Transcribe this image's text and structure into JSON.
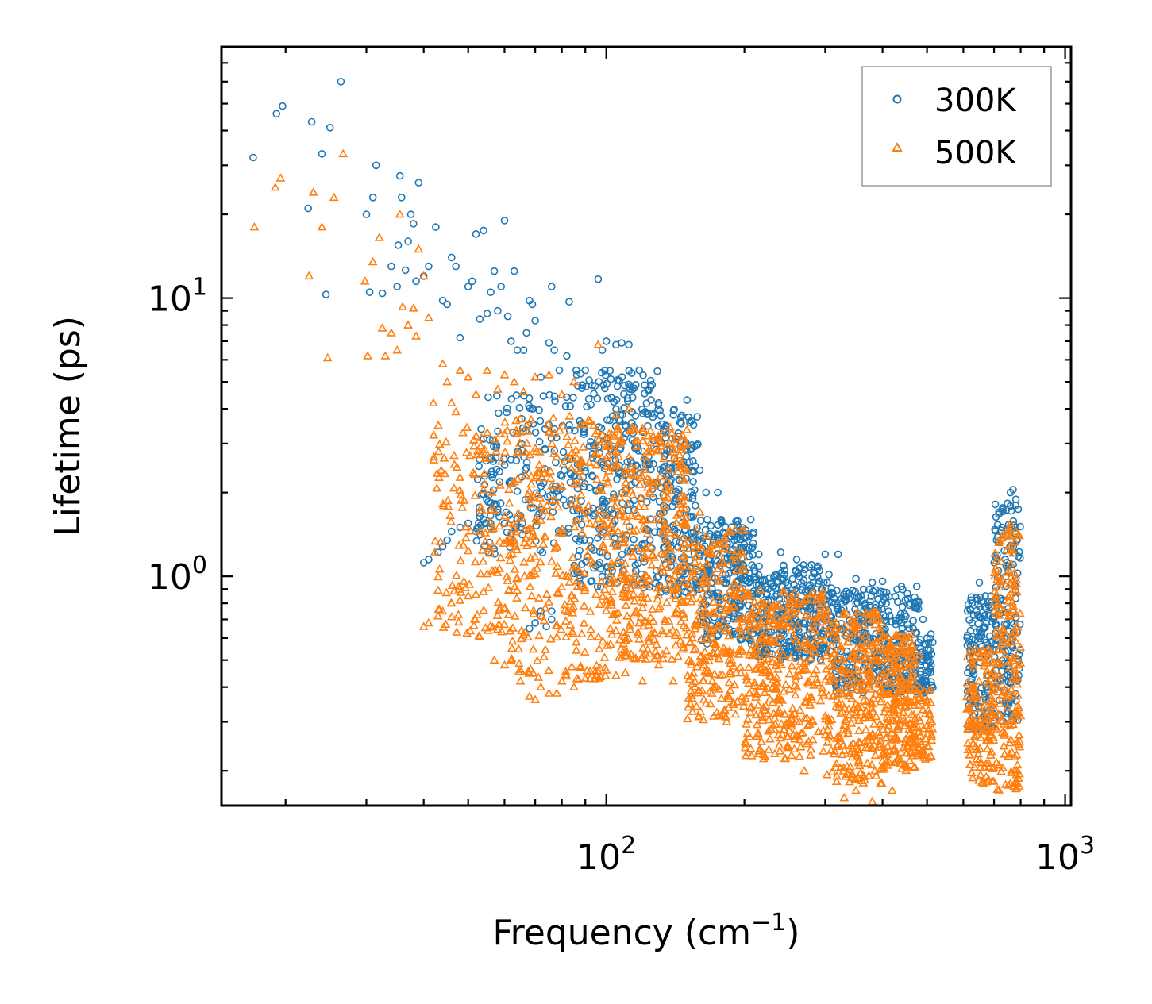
{
  "chart_data": {
    "type": "scatter",
    "title": "",
    "xlabel_main": "Frequency (cm",
    "xlabel_sup": "−1",
    "xlabel_close": ")",
    "ylabel": "Lifetime (ps)",
    "xscale": "log",
    "yscale": "log",
    "xlim": [
      14.5,
      1030
    ],
    "ylim": [
      0.15,
      80
    ],
    "x_major_ticks": [
      {
        "base": "10",
        "exp": "2",
        "value": 100
      },
      {
        "base": "10",
        "exp": "3",
        "value": 1000
      }
    ],
    "y_major_ticks": [
      {
        "base": "10",
        "exp": "0",
        "value": 1
      },
      {
        "base": "10",
        "exp": "1",
        "value": 10
      }
    ],
    "legend_position": "top-right",
    "series": [
      {
        "name": "300K",
        "marker": "circle-open",
        "color": "#1f77b4",
        "points": [
          [
            17,
            32
          ],
          [
            19.1,
            46
          ],
          [
            19.7,
            49
          ],
          [
            22.4,
            21
          ],
          [
            22.8,
            43
          ],
          [
            24,
            33
          ],
          [
            24.5,
            10.3
          ],
          [
            25,
            41
          ],
          [
            26.4,
            60
          ],
          [
            30,
            20
          ],
          [
            30.5,
            10.5
          ],
          [
            31,
            23
          ],
          [
            31.5,
            30
          ],
          [
            32.5,
            10.4
          ],
          [
            34,
            13
          ],
          [
            35,
            11
          ],
          [
            35.2,
            15.5
          ],
          [
            35.5,
            27.5
          ],
          [
            35.8,
            23
          ],
          [
            36.5,
            12.6
          ],
          [
            37,
            16
          ],
          [
            37.5,
            20
          ],
          [
            38,
            18.5
          ],
          [
            38.5,
            11.5
          ],
          [
            39,
            26
          ],
          [
            40,
            12
          ],
          [
            41,
            13
          ],
          [
            42.5,
            18
          ],
          [
            44,
            9.8
          ],
          [
            45,
            9.5
          ],
          [
            46,
            14
          ],
          [
            47,
            13
          ],
          [
            48,
            7.2
          ],
          [
            50,
            11
          ],
          [
            51,
            11.5
          ],
          [
            52,
            17
          ],
          [
            53,
            8.4
          ],
          [
            54,
            17.5
          ],
          [
            55,
            8.8
          ],
          [
            56,
            10.5
          ],
          [
            57,
            12.5
          ],
          [
            58,
            9
          ],
          [
            59,
            11
          ],
          [
            60,
            19
          ],
          [
            61,
            8.6
          ],
          [
            62,
            7
          ],
          [
            63,
            12.5
          ],
          [
            64,
            6.5
          ],
          [
            66,
            6.5
          ],
          [
            67,
            7.5
          ],
          [
            68,
            9.8
          ],
          [
            69,
            9.5
          ],
          [
            70,
            8.3
          ],
          [
            72,
            5.2
          ],
          [
            75,
            6.9
          ],
          [
            76,
            11
          ],
          [
            77,
            6.5
          ],
          [
            79,
            5.5
          ],
          [
            82,
            6.2
          ],
          [
            83,
            9.7
          ],
          [
            86,
            5.5
          ],
          [
            90,
            5.5
          ],
          [
            96,
            11.7
          ],
          [
            98,
            6.5
          ],
          [
            40,
            1.12
          ],
          [
            41,
            1.15
          ],
          [
            43,
            1.22
          ],
          [
            44,
            1.28
          ],
          [
            45,
            1.35
          ],
          [
            46,
            1.45
          ],
          [
            48,
            1.5
          ],
          [
            50,
            1.55
          ],
          [
            52,
            1.45
          ],
          [
            54,
            1.6
          ],
          [
            56,
            1.5
          ],
          [
            58,
            1.7
          ],
          [
            60,
            1.55
          ],
          [
            62,
            1.6
          ],
          [
            65,
            1.5
          ],
          [
            68,
            0.65
          ],
          [
            70,
            0.68
          ],
          [
            72,
            0.72
          ],
          [
            74,
            0.66
          ],
          [
            76,
            0.7
          ],
          [
            72,
            0.75
          ],
          [
            76,
            0.75
          ],
          [
            100,
            7
          ],
          [
            105,
            6.8
          ],
          [
            108,
            6.9
          ],
          [
            112,
            6.8
          ],
          [
            118,
            5.5
          ],
          [
            125,
            4.8
          ],
          [
            130,
            4.2
          ],
          [
            140,
            3.8
          ],
          [
            150,
            4.3
          ],
          [
            155,
            3.5
          ],
          [
            165,
            2.0
          ],
          [
            175,
            2.0
          ],
          [
            190,
            1.35
          ],
          [
            200,
            1.3
          ],
          [
            215,
            1.2
          ],
          [
            240,
            1.22
          ],
          [
            260,
            1.15
          ],
          [
            280,
            1.1
          ],
          [
            300,
            1.2
          ],
          [
            320,
            1.2
          ],
          [
            350,
            0.98
          ],
          [
            380,
            0.95
          ],
          [
            400,
            0.96
          ],
          [
            440,
            0.92
          ],
          [
            460,
            0.8
          ],
          [
            475,
            0.92
          ],
          [
            490,
            0.7
          ],
          [
            500,
            0.6
          ],
          [
            510,
            0.62
          ],
          [
            650,
            0.95
          ],
          [
            670,
            0.85
          ],
          [
            700,
            0.75
          ],
          [
            760,
            2.0
          ],
          [
            770,
            2.05
          ],
          [
            780,
            1.8
          ]
        ],
        "bands": [
          [
            52,
            85,
            1.2,
            4.5,
            180
          ],
          [
            85,
            130,
            0.9,
            5.5,
            320
          ],
          [
            130,
            160,
            0.85,
            4.0,
            200
          ],
          [
            160,
            210,
            0.55,
            1.6,
            240
          ],
          [
            210,
            310,
            0.5,
            1.1,
            320
          ],
          [
            310,
            480,
            0.38,
            0.9,
            340
          ],
          [
            480,
            515,
            0.38,
            0.6,
            60
          ],
          [
            610,
            700,
            0.28,
            0.85,
            140
          ],
          [
            700,
            800,
            0.3,
            1.9,
            160
          ]
        ]
      },
      {
        "name": "500K",
        "marker": "triangle-open",
        "color": "#ff7f0e",
        "points": [
          [
            17.1,
            18
          ],
          [
            19,
            25
          ],
          [
            19.5,
            27
          ],
          [
            22.5,
            12
          ],
          [
            23,
            24
          ],
          [
            24,
            18
          ],
          [
            24.7,
            6.1
          ],
          [
            25.5,
            23
          ],
          [
            26.7,
            33
          ],
          [
            29.8,
            11.5
          ],
          [
            30.2,
            6.2
          ],
          [
            31,
            13.5
          ],
          [
            32,
            16.5
          ],
          [
            32.5,
            7.8
          ],
          [
            33,
            6.2
          ],
          [
            34,
            7.5
          ],
          [
            35,
            6.5
          ],
          [
            35.5,
            20
          ],
          [
            36,
            9.3
          ],
          [
            37,
            8
          ],
          [
            38,
            9.2
          ],
          [
            38.5,
            7.3
          ],
          [
            39,
            15
          ],
          [
            40,
            12
          ],
          [
            41,
            8.5
          ],
          [
            42,
            4.2
          ],
          [
            44,
            5.8
          ],
          [
            45,
            5
          ],
          [
            46,
            4.2
          ],
          [
            47,
            3.9
          ],
          [
            48,
            5.5
          ],
          [
            50,
            5.2
          ],
          [
            52,
            4.5
          ],
          [
            55,
            5.5
          ],
          [
            58,
            4.7
          ],
          [
            60,
            5.3
          ],
          [
            63,
            5
          ],
          [
            66,
            4.6
          ],
          [
            70,
            5.2
          ],
          [
            75,
            5.3
          ],
          [
            80,
            4.5
          ],
          [
            85,
            5
          ],
          [
            96,
            6.8
          ],
          [
            40,
            0.66
          ],
          [
            41,
            0.68
          ],
          [
            43,
            0.72
          ],
          [
            44,
            0.75
          ],
          [
            46,
            0.8
          ],
          [
            48,
            0.82
          ],
          [
            50,
            0.85
          ],
          [
            52,
            0.86
          ],
          [
            54,
            0.88
          ],
          [
            57,
            0.5
          ],
          [
            60,
            0.48
          ],
          [
            62,
            0.5
          ],
          [
            65,
            0.42
          ],
          [
            68,
            0.37
          ],
          [
            70,
            0.36
          ],
          [
            72,
            0.4
          ],
          [
            75,
            0.38
          ],
          [
            78,
            0.38
          ],
          [
            80,
            0.42
          ],
          [
            85,
            0.4
          ],
          [
            90,
            0.43
          ],
          [
            95,
            0.44
          ],
          [
            100,
            0.46
          ],
          [
            105,
            0.44
          ],
          [
            110,
            0.45
          ],
          [
            120,
            0.42
          ],
          [
            130,
            0.48
          ],
          [
            140,
            0.42
          ],
          [
            105,
            3.8
          ],
          [
            112,
            4.0
          ],
          [
            120,
            3.4
          ],
          [
            130,
            3.2
          ],
          [
            140,
            2.8
          ],
          [
            150,
            2.4
          ],
          [
            160,
            1.7
          ],
          [
            170,
            1.2
          ],
          [
            190,
            0.95
          ],
          [
            220,
            0.8
          ],
          [
            250,
            0.78
          ],
          [
            290,
            0.72
          ],
          [
            330,
            0.66
          ],
          [
            360,
            0.55
          ],
          [
            390,
            0.58
          ],
          [
            420,
            0.56
          ],
          [
            450,
            0.55
          ],
          [
            480,
            0.52
          ],
          [
            500,
            0.36
          ],
          [
            505,
            0.32
          ],
          [
            680,
            0.55
          ],
          [
            700,
            0.42
          ],
          [
            760,
            1.55
          ],
          [
            780,
            1.45
          ],
          [
            330,
            0.16
          ],
          [
            380,
            0.155
          ],
          [
            420,
            0.17
          ],
          [
            350,
            0.17
          ],
          [
            270,
            0.2
          ],
          [
            760,
            0.18
          ]
        ],
        "bands": [
          [
            42,
            60,
            0.6,
            3.5,
            140
          ],
          [
            60,
            100,
            0.42,
            3.8,
            320
          ],
          [
            100,
            150,
            0.5,
            3.5,
            380
          ],
          [
            150,
            200,
            0.3,
            1.5,
            240
          ],
          [
            200,
            300,
            0.22,
            0.9,
            340
          ],
          [
            300,
            400,
            0.18,
            0.75,
            300
          ],
          [
            400,
            470,
            0.2,
            0.62,
            220
          ],
          [
            470,
            515,
            0.22,
            0.4,
            60
          ],
          [
            610,
            700,
            0.18,
            0.55,
            140
          ],
          [
            700,
            800,
            0.17,
            1.5,
            180
          ]
        ]
      }
    ]
  }
}
